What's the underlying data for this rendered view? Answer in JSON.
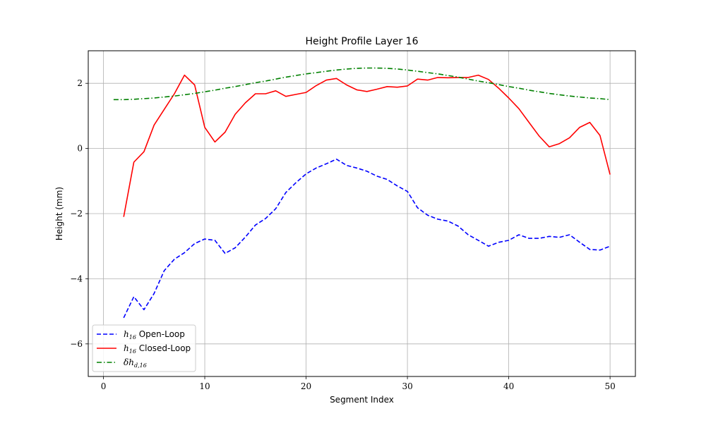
{
  "chart_data": {
    "type": "line",
    "title": "Height Profile Layer 16",
    "xlabel": "Segment Index",
    "ylabel": "Height (mm)",
    "xlim": [
      -1.5,
      52.5
    ],
    "ylim": [
      -7,
      3
    ],
    "xticks": [
      0,
      10,
      20,
      30,
      40,
      50
    ],
    "yticks": [
      -6,
      -4,
      -2,
      0,
      2
    ],
    "grid": true,
    "legend_position": "lower-left",
    "series": [
      {
        "name": "h_16 Open-Loop",
        "legend": {
          "symbol": "h",
          "subscript": "16",
          "text": " Open-Loop"
        },
        "color": "#0000ff",
        "style": "dashed",
        "x": [
          2,
          3,
          4,
          5,
          6,
          7,
          8,
          9,
          10,
          11,
          12,
          13,
          14,
          15,
          16,
          17,
          18,
          19,
          20,
          21,
          22,
          23,
          24,
          25,
          26,
          27,
          28,
          29,
          30,
          31,
          32,
          33,
          34,
          35,
          36,
          37,
          38,
          39,
          40,
          41,
          42,
          43,
          44,
          45,
          46,
          47,
          48,
          49,
          50
        ],
        "y": [
          -5.2,
          -4.55,
          -4.95,
          -4.45,
          -3.75,
          -3.4,
          -3.2,
          -2.92,
          -2.78,
          -2.82,
          -3.22,
          -3.05,
          -2.72,
          -2.35,
          -2.15,
          -1.85,
          -1.35,
          -1.05,
          -0.78,
          -0.6,
          -0.47,
          -0.33,
          -0.52,
          -0.6,
          -0.7,
          -0.85,
          -0.95,
          -1.15,
          -1.32,
          -1.82,
          -2.05,
          -2.17,
          -2.23,
          -2.38,
          -2.65,
          -2.82,
          -3.0,
          -2.88,
          -2.82,
          -2.65,
          -2.76,
          -2.76,
          -2.7,
          -2.73,
          -2.65,
          -2.88,
          -3.1,
          -3.12,
          -3.0
        ]
      },
      {
        "name": "h_16 Closed-Loop",
        "legend": {
          "symbol": "h",
          "subscript": "16",
          "text": " Closed-Loop"
        },
        "color": "#ff0000",
        "style": "solid",
        "x": [
          2,
          3,
          4,
          5,
          6,
          7,
          8,
          9,
          10,
          11,
          12,
          13,
          14,
          15,
          16,
          17,
          18,
          19,
          20,
          21,
          22,
          23,
          24,
          25,
          26,
          27,
          28,
          29,
          30,
          31,
          32,
          33,
          34,
          35,
          36,
          37,
          38,
          39,
          40,
          41,
          42,
          43,
          44,
          45,
          46,
          47,
          48,
          49,
          50
        ],
        "y": [
          -2.1,
          -0.42,
          -0.1,
          0.72,
          1.2,
          1.68,
          2.25,
          1.95,
          0.65,
          0.2,
          0.5,
          1.05,
          1.4,
          1.68,
          1.68,
          1.77,
          1.6,
          1.66,
          1.72,
          1.93,
          2.1,
          2.15,
          1.95,
          1.8,
          1.75,
          1.82,
          1.9,
          1.88,
          1.92,
          2.13,
          2.1,
          2.18,
          2.17,
          2.18,
          2.18,
          2.25,
          2.12,
          1.85,
          1.55,
          1.22,
          0.8,
          0.38,
          0.05,
          0.15,
          0.33,
          0.65,
          0.8,
          0.4,
          -0.8
        ]
      },
      {
        "name": "δh_d,16",
        "legend": {
          "symbol": "δh",
          "subscript": "d,16",
          "text": ""
        },
        "color": "#008000",
        "style": "dashdot",
        "x": [
          1,
          2,
          3,
          4,
          5,
          6,
          7,
          8,
          9,
          10,
          11,
          12,
          13,
          14,
          15,
          16,
          17,
          18,
          19,
          20,
          21,
          22,
          23,
          24,
          25,
          26,
          27,
          28,
          29,
          30,
          31,
          32,
          33,
          34,
          35,
          36,
          37,
          38,
          39,
          40,
          41,
          42,
          43,
          44,
          45,
          46,
          47,
          48,
          49,
          50
        ],
        "y": [
          1.5,
          1.5,
          1.51,
          1.53,
          1.55,
          1.58,
          1.61,
          1.65,
          1.69,
          1.74,
          1.79,
          1.85,
          1.9,
          1.96,
          2.02,
          2.07,
          2.13,
          2.19,
          2.24,
          2.29,
          2.33,
          2.37,
          2.41,
          2.44,
          2.46,
          2.47,
          2.47,
          2.46,
          2.44,
          2.41,
          2.37,
          2.33,
          2.29,
          2.24,
          2.19,
          2.13,
          2.07,
          2.02,
          1.96,
          1.9,
          1.85,
          1.79,
          1.74,
          1.69,
          1.65,
          1.61,
          1.58,
          1.55,
          1.53,
          1.5
        ]
      }
    ]
  }
}
